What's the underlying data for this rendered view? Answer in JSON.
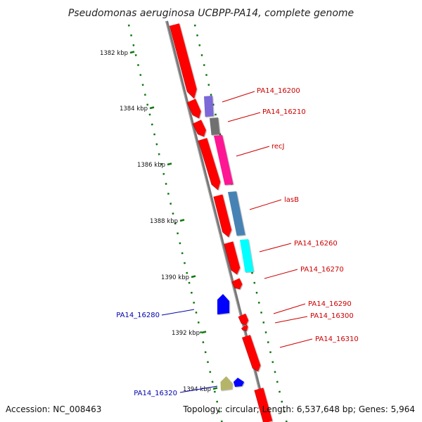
{
  "title": "Pseudomonas aeruginosa UCBPP-PA14, complete genome",
  "footer": {
    "accession": "Accession: NC_008463",
    "summary": "Topology: circular; Length: 6,537,648 bp; Genes: 5,964"
  },
  "ticks": [
    {
      "label": "1382 kbp"
    },
    {
      "label": "1384 kbp"
    },
    {
      "label": "1386 kbp"
    },
    {
      "label": "1388 kbp"
    },
    {
      "label": "1390 kbp"
    },
    {
      "label": "1392 kbp"
    },
    {
      "label": "1394 kbp"
    }
  ],
  "genes": [
    {
      "label": "PA14_16200",
      "color": "#7b68d6",
      "strand": "forward"
    },
    {
      "label": "PA14_16210",
      "color": "#707070",
      "strand": "forward"
    },
    {
      "label": "recJ",
      "color": "#ff1493",
      "strand": "forward"
    },
    {
      "label": "lasB",
      "color": "#4682b4",
      "strand": "forward"
    },
    {
      "label": "PA14_16260",
      "color": "#00ffff",
      "strand": "forward"
    },
    {
      "label": "PA14_16270",
      "color": "#ff0000",
      "strand": "forward"
    },
    {
      "label": "PA14_16290",
      "color": "#ff0000",
      "strand": "forward"
    },
    {
      "label": "PA14_16300",
      "color": "#ff0000",
      "strand": "forward"
    },
    {
      "label": "PA14_16310",
      "color": "#ff0000",
      "strand": "forward"
    },
    {
      "label": "PA14_16280",
      "color": "#0000ff",
      "strand": "reverse"
    },
    {
      "label": "PA14_16320",
      "color": "#b5b56b",
      "strand": "reverse"
    }
  ],
  "colors": {
    "forward_label": "#cc0000",
    "reverse_label": "#0000aa",
    "cds": "#ff0000",
    "backbone": "#808080",
    "ticks": "#117711"
  }
}
